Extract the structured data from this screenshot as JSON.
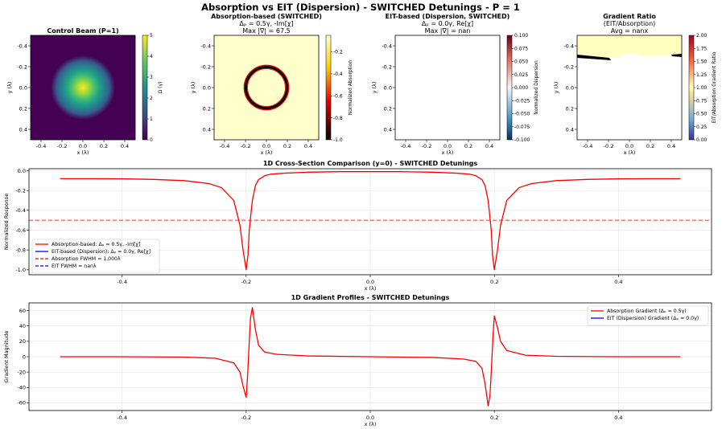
{
  "suptitle": "Absorption vs EIT (Dispersion) - SWITCHED Detunings - P = 1",
  "panels": [
    {
      "title_lines": [
        "Control Beam (P=1)"
      ],
      "xlabel": "x (λ)",
      "ylabel": "y (λ)",
      "colorbar_label": "Ω (γ)",
      "colorbar_ticks": [
        "0",
        "1",
        "2",
        "3",
        "4",
        "5"
      ],
      "colormap": "viridis"
    },
    {
      "title_lines": [
        "Absorption-based (SWITCHED)",
        "Δₚ = 0.5γ, -Im[χ]",
        "Max |∇| = 67.5"
      ],
      "xlabel": "x (λ)",
      "ylabel": "y (λ)",
      "colorbar_label": "Normalized Absorption",
      "colorbar_ticks": [
        "-1.0",
        "-0.8",
        "-0.6",
        "-0.4",
        "-0.2"
      ],
      "colormap": "hot"
    },
    {
      "title_lines": [
        "EIT-based (Dispersion, SWITCHED)",
        "Δₚ = 0.0γ, Re[χ]",
        "Max |∇| = nan"
      ],
      "xlabel": "x (λ)",
      "ylabel": "y (λ)",
      "colorbar_label": "Normalized Dispersion",
      "colorbar_ticks": [
        "-0.100",
        "-0.075",
        "-0.050",
        "-0.025",
        "0.000",
        "0.025",
        "0.050",
        "0.075",
        "0.100"
      ],
      "colormap": "RdBu_r"
    },
    {
      "title_lines": [
        "Gradient Ratio",
        "(EIT/Absorption)",
        "Avg = nanx"
      ],
      "xlabel": "x (λ)",
      "ylabel": "y (λ)",
      "colorbar_label": "EIT/Absorption Gradient Ratio",
      "colorbar_ticks": [
        "0.00",
        "0.25",
        "0.50",
        "0.75",
        "1.00",
        "1.25",
        "1.50",
        "1.75",
        "2.00"
      ],
      "colormap": "RdYlBu_r"
    }
  ],
  "image_axis_ticks": [
    "-0.4",
    "-0.2",
    "0.0",
    "0.2",
    "0.4"
  ],
  "section1": {
    "title": "1D Cross-Section Comparison (y=0) - SWITCHED Detunings",
    "ylabel": "Normalized Response",
    "xlabel": "x (λ)",
    "yticks": [
      "0.0",
      "-0.2",
      "-0.4",
      "-0.6",
      "-0.8",
      "-1.0"
    ],
    "xticks": [
      "-0.4",
      "-0.2",
      "0.0",
      "0.2",
      "0.4"
    ],
    "legend": [
      {
        "label": "Absorption-based: Δₚ = 0.5γ, -Im[χ]",
        "color": "#ff0000",
        "dash": false
      },
      {
        "label": "EIT-based (Dispersion): Δₚ = 0.0γ, Re[χ]",
        "color": "#0000ff",
        "dash": false
      },
      {
        "label": "Absorption FWHM = 1.000λ",
        "color": "#ff0000",
        "dash": true
      },
      {
        "label": "EIT FWHM = nanλ",
        "color": "#0000ff",
        "dash": true
      }
    ]
  },
  "section2": {
    "title": "1D Gradient Profiles - SWITCHED Detunings",
    "ylabel": "Gradient Magnitude",
    "xlabel": "x (λ)",
    "yticks": [
      "60",
      "40",
      "20",
      "0",
      "-20",
      "-40",
      "-60"
    ],
    "xticks": [
      "-0.4",
      "-0.2",
      "0.0",
      "0.2",
      "0.4"
    ],
    "legend": [
      {
        "label": "Absorption Gradient (Δₚ = 0.5γ)",
        "color": "#ff0000",
        "dash": false
      },
      {
        "label": "EIT (Dispersion) Gradient (Δₚ = 0.0γ)",
        "color": "#0000ff",
        "dash": false
      }
    ]
  },
  "chart_data": [
    {
      "type": "heatmap",
      "title": "Control Beam (P=1)",
      "xlabel": "x (λ)",
      "ylabel": "y (λ)",
      "xlim": [
        -0.5,
        0.5
      ],
      "ylim": [
        -0.5,
        0.5
      ],
      "colorbar_range": [
        0,
        5
      ],
      "description_values": {
        "peak": 5,
        "peak_x": 0.0,
        "peak_y": 0.0,
        "width": 0.12
      }
    },
    {
      "type": "heatmap",
      "title": "Absorption-based (SWITCHED)",
      "xlim": [
        -0.5,
        0.5
      ],
      "ylim": [
        -0.5,
        0.5
      ],
      "colorbar_range": [
        -1.0,
        -0.05
      ],
      "ring_radius": 0.195,
      "inside_value": -0.05,
      "outside_value": -0.08
    },
    {
      "type": "heatmap",
      "title": "EIT-based (Dispersion, SWITCHED)",
      "xlim": [
        -0.5,
        0.5
      ],
      "ylim": [
        -0.5,
        0.5
      ],
      "colorbar_range": [
        -0.1,
        0.1
      ]
    },
    {
      "type": "heatmap",
      "title": "Gradient Ratio",
      "xlim": [
        -0.5,
        0.5
      ],
      "ylim": [
        -0.5,
        0.5
      ],
      "colorbar_range": [
        0,
        2
      ]
    },
    {
      "type": "line",
      "title": "1D Cross-Section Comparison (y=0) - SWITCHED Detunings",
      "xlabel": "x (λ)",
      "ylabel": "Normalized Response",
      "xlim": [
        -0.55,
        0.55
      ],
      "ylim": [
        -1.05,
        0.02
      ],
      "series": [
        {
          "name": "Absorption-based: Δₚ = 0.5γ, -Im[χ]",
          "x": [
            -0.5,
            -0.45,
            -0.4,
            -0.35,
            -0.3,
            -0.26,
            -0.24,
            -0.22,
            -0.21,
            -0.205,
            -0.2,
            -0.197,
            -0.195,
            -0.19,
            -0.185,
            -0.18,
            -0.17,
            -0.16,
            -0.14,
            -0.1,
            -0.05,
            0,
            0.05,
            0.1,
            0.14,
            0.16,
            0.17,
            0.18,
            0.185,
            0.19,
            0.195,
            0.197,
            0.2,
            0.205,
            0.21,
            0.22,
            0.24,
            0.26,
            0.3,
            0.35,
            0.4,
            0.45,
            0.5
          ],
          "y": [
            -0.08,
            -0.08,
            -0.082,
            -0.088,
            -0.1,
            -0.13,
            -0.17,
            -0.3,
            -0.55,
            -0.8,
            -1.0,
            -0.85,
            -0.6,
            -0.3,
            -0.15,
            -0.09,
            -0.05,
            -0.035,
            -0.025,
            -0.015,
            -0.01,
            -0.01,
            -0.01,
            -0.015,
            -0.025,
            -0.035,
            -0.05,
            -0.09,
            -0.15,
            -0.3,
            -0.6,
            -0.85,
            -1.0,
            -0.8,
            -0.55,
            -0.3,
            -0.17,
            -0.13,
            -0.1,
            -0.088,
            -0.082,
            -0.08,
            -0.08
          ]
        },
        {
          "name": "Absorption FWHM = 1.000λ",
          "x": [
            -0.55,
            0.55
          ],
          "y": [
            -0.5,
            -0.5
          ]
        }
      ]
    },
    {
      "type": "line",
      "title": "1D Gradient Profiles - SWITCHED Detunings",
      "xlabel": "x (λ)",
      "ylabel": "Gradient Magnitude",
      "xlim": [
        -0.55,
        0.55
      ],
      "ylim": [
        -70,
        70
      ],
      "series": [
        {
          "name": "Absorption Gradient (Δₚ = 0.5γ)",
          "x": [
            -0.5,
            -0.4,
            -0.3,
            -0.25,
            -0.22,
            -0.21,
            -0.205,
            -0.2,
            -0.198,
            -0.195,
            -0.193,
            -0.19,
            -0.185,
            -0.18,
            -0.17,
            -0.15,
            -0.1,
            0,
            0.1,
            0.15,
            0.17,
            0.18,
            0.185,
            0.19,
            0.193,
            0.195,
            0.198,
            0.2,
            0.205,
            0.21,
            0.22,
            0.25,
            0.3,
            0.4,
            0.5
          ],
          "y": [
            0,
            0,
            -0.5,
            -2,
            -8,
            -20,
            -38,
            -53,
            -30,
            20,
            50,
            64,
            35,
            15,
            6,
            3,
            1,
            0,
            -1,
            -3,
            -6,
            -15,
            -35,
            -64,
            -50,
            -20,
            30,
            53,
            38,
            20,
            8,
            2,
            0.5,
            0,
            0
          ]
        }
      ]
    }
  ]
}
